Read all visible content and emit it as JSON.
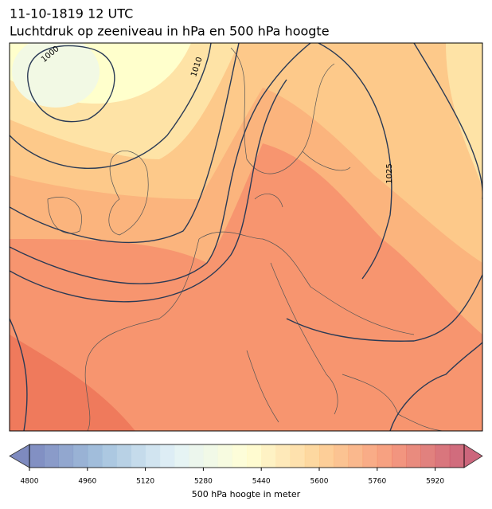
{
  "title": "11-10-1819 12 UTC",
  "subtitle": "Luchtdruk op zeeniveau in hPa en 500 hPa hoogte",
  "contour_labels": [
    "1000",
    "1010",
    "1025"
  ],
  "colorbar": {
    "label": "500 hPa hoogte in meter",
    "lim": [
      4800,
      6000
    ],
    "step": 40,
    "ticks": [
      4800,
      4960,
      5120,
      5280,
      5440,
      5600,
      5760,
      5920
    ],
    "colormap": [
      "#5e6db0",
      "#8fb4d6",
      "#dceff5",
      "#ffffcc",
      "#fdc981",
      "#f4825f",
      "#c0405c"
    ]
  }
}
